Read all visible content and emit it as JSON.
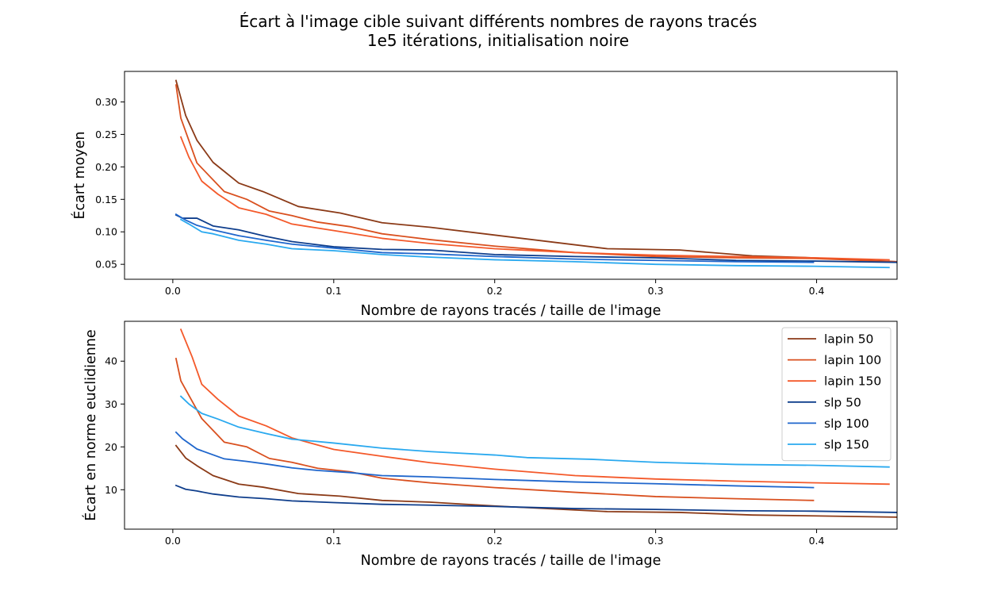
{
  "figure": {
    "title_line1": "Écart à l'image cible suivant différents nombres de rayons tracés",
    "title_line2": "1e5 itérations, initialisation noire"
  },
  "series_colors": {
    "lapin 50": "#8B3A17",
    "lapin 100": "#D9501F",
    "lapin 150": "#F4592A",
    "slp 50": "#0F3E8C",
    "slp 100": "#1F66CC",
    "slp 150": "#2AA9EF"
  },
  "chart_data": [
    {
      "type": "line",
      "xlabel": "Nombre de rayons tracés / taille de l'image",
      "ylabel": "Écart moyen",
      "xlim": [
        -0.03,
        0.45
      ],
      "ylim": [
        0.027,
        0.347
      ],
      "xticks": [
        0.0,
        0.1,
        0.2,
        0.3,
        0.4
      ],
      "xtick_labels": [
        "0.0",
        "0.1",
        "0.2",
        "0.3",
        "0.4"
      ],
      "yticks": [
        0.05,
        0.1,
        0.15,
        0.2,
        0.25,
        0.3
      ],
      "ytick_labels": [
        "0.05",
        "0.10",
        "0.15",
        "0.20",
        "0.25",
        "0.30"
      ],
      "series": [
        {
          "name": "lapin 50",
          "x": [
            0.002,
            0.008,
            0.015,
            0.025,
            0.041,
            0.056,
            0.078,
            0.104,
            0.13,
            0.16,
            0.2,
            0.27,
            0.315,
            0.36,
            0.398,
            0.45
          ],
          "y": [
            0.333,
            0.279,
            0.241,
            0.207,
            0.175,
            0.162,
            0.139,
            0.129,
            0.114,
            0.107,
            0.095,
            0.074,
            0.072,
            0.063,
            0.06,
            0.054
          ]
        },
        {
          "name": "lapin 100",
          "x": [
            0.002,
            0.005,
            0.015,
            0.032,
            0.046,
            0.06,
            0.074,
            0.09,
            0.11,
            0.13,
            0.16,
            0.2,
            0.25,
            0.3,
            0.35,
            0.398,
            0.45
          ],
          "y": [
            0.326,
            0.275,
            0.206,
            0.162,
            0.15,
            0.132,
            0.125,
            0.115,
            0.108,
            0.097,
            0.088,
            0.078,
            0.068,
            0.062,
            0.06,
            0.059,
            0.054
          ]
        },
        {
          "name": "lapin 150",
          "x": [
            0.005,
            0.01,
            0.018,
            0.028,
            0.041,
            0.058,
            0.074,
            0.1,
            0.13,
            0.16,
            0.2,
            0.25,
            0.3,
            0.35,
            0.4,
            0.445
          ],
          "y": [
            0.246,
            0.215,
            0.178,
            0.158,
            0.137,
            0.127,
            0.112,
            0.102,
            0.09,
            0.082,
            0.074,
            0.068,
            0.064,
            0.062,
            0.06,
            0.057
          ]
        },
        {
          "name": "slp 50",
          "x": [
            0.002,
            0.006,
            0.015,
            0.025,
            0.041,
            0.058,
            0.074,
            0.1,
            0.13,
            0.16,
            0.2,
            0.25,
            0.3,
            0.35,
            0.398,
            0.45
          ],
          "y": [
            0.126,
            0.121,
            0.121,
            0.109,
            0.103,
            0.093,
            0.085,
            0.077,
            0.073,
            0.072,
            0.065,
            0.062,
            0.06,
            0.056,
            0.055,
            0.053
          ]
        },
        {
          "name": "slp 100",
          "x": [
            0.002,
            0.008,
            0.015,
            0.025,
            0.041,
            0.058,
            0.074,
            0.1,
            0.13,
            0.16,
            0.2,
            0.25,
            0.3,
            0.35,
            0.398
          ],
          "y": [
            0.127,
            0.118,
            0.11,
            0.103,
            0.094,
            0.087,
            0.081,
            0.075,
            0.068,
            0.066,
            0.062,
            0.058,
            0.056,
            0.054,
            0.053
          ]
        },
        {
          "name": "slp 150",
          "x": [
            0.005,
            0.01,
            0.018,
            0.025,
            0.041,
            0.058,
            0.074,
            0.1,
            0.13,
            0.16,
            0.2,
            0.25,
            0.3,
            0.35,
            0.398,
            0.445
          ],
          "y": [
            0.119,
            0.112,
            0.1,
            0.097,
            0.087,
            0.081,
            0.074,
            0.071,
            0.065,
            0.061,
            0.057,
            0.054,
            0.05,
            0.048,
            0.047,
            0.045
          ]
        }
      ]
    },
    {
      "type": "line",
      "xlabel": "Nombre de rayons tracés / taille de l'image",
      "ylabel": "Écart en norme euclidienne",
      "xlim": [
        -0.03,
        0.45
      ],
      "ylim": [
        0.8,
        49.3
      ],
      "xticks": [
        0.0,
        0.1,
        0.2,
        0.3,
        0.4
      ],
      "xtick_labels": [
        "0.0",
        "0.1",
        "0.2",
        "0.3",
        "0.4"
      ],
      "yticks": [
        10,
        20,
        30,
        40
      ],
      "ytick_labels": [
        "10",
        "20",
        "30",
        "40"
      ],
      "legend_position": "top-right",
      "legend": [
        "lapin 50",
        "lapin 100",
        "lapin 150",
        "slp 50",
        "slp 100",
        "slp 150"
      ],
      "series": [
        {
          "name": "lapin 50",
          "x": [
            0.002,
            0.008,
            0.015,
            0.025,
            0.041,
            0.056,
            0.078,
            0.104,
            0.13,
            0.16,
            0.2,
            0.27,
            0.315,
            0.36,
            0.398,
            0.45
          ],
          "y": [
            20.3,
            17.4,
            15.6,
            13.3,
            11.3,
            10.6,
            9.1,
            8.5,
            7.5,
            7.1,
            6.2,
            4.9,
            4.7,
            4.1,
            3.9,
            3.6
          ]
        },
        {
          "name": "lapin 100",
          "x": [
            0.002,
            0.005,
            0.018,
            0.032,
            0.046,
            0.06,
            0.074,
            0.09,
            0.11,
            0.13,
            0.16,
            0.2,
            0.25,
            0.3,
            0.35,
            0.398
          ],
          "y": [
            40.6,
            35.4,
            26.6,
            21.1,
            20.0,
            17.3,
            16.4,
            15.0,
            14.2,
            12.7,
            11.6,
            10.5,
            9.4,
            8.4,
            7.9,
            7.5
          ]
        },
        {
          "name": "lapin 150",
          "x": [
            0.005,
            0.012,
            0.018,
            0.028,
            0.041,
            0.058,
            0.074,
            0.1,
            0.13,
            0.16,
            0.2,
            0.25,
            0.3,
            0.35,
            0.4,
            0.445
          ],
          "y": [
            47.4,
            41.0,
            34.6,
            31.1,
            27.2,
            24.9,
            22.1,
            19.4,
            17.8,
            16.3,
            14.8,
            13.3,
            12.5,
            12.0,
            11.6,
            11.3
          ]
        },
        {
          "name": "slp 50",
          "x": [
            0.002,
            0.008,
            0.015,
            0.025,
            0.041,
            0.058,
            0.074,
            0.1,
            0.13,
            0.16,
            0.2,
            0.25,
            0.3,
            0.35,
            0.398,
            0.45
          ],
          "y": [
            11.0,
            10.1,
            9.7,
            9.0,
            8.3,
            7.9,
            7.4,
            7.0,
            6.6,
            6.4,
            6.1,
            5.6,
            5.4,
            5.1,
            5.0,
            4.7
          ]
        },
        {
          "name": "slp 100",
          "x": [
            0.002,
            0.006,
            0.015,
            0.032,
            0.046,
            0.06,
            0.074,
            0.09,
            0.11,
            0.13,
            0.16,
            0.2,
            0.25,
            0.3,
            0.35,
            0.398
          ],
          "y": [
            23.4,
            21.9,
            19.5,
            17.2,
            16.6,
            15.9,
            15.1,
            14.5,
            14.0,
            13.3,
            13.0,
            12.4,
            11.8,
            11.4,
            10.9,
            10.5
          ]
        },
        {
          "name": "slp 150",
          "x": [
            0.005,
            0.01,
            0.018,
            0.028,
            0.041,
            0.058,
            0.074,
            0.1,
            0.13,
            0.16,
            0.2,
            0.22,
            0.26,
            0.3,
            0.35,
            0.398,
            0.445
          ],
          "y": [
            31.8,
            30.0,
            27.8,
            26.5,
            24.6,
            23.1,
            21.8,
            20.9,
            19.7,
            18.9,
            18.1,
            17.5,
            17.1,
            16.4,
            15.9,
            15.7,
            15.3
          ]
        }
      ]
    }
  ]
}
